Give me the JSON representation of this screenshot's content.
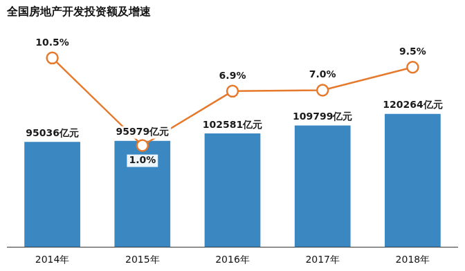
{
  "chart_data": {
    "type": "bar",
    "title": "全国房地产开发投资额及增速",
    "categories": [
      "2014年",
      "2015年",
      "2016年",
      "2017年",
      "2018年"
    ],
    "series": [
      {
        "type": "bar",
        "color": "#3a87c2",
        "values": [
          95036,
          95979,
          102581,
          109799,
          120264
        ],
        "value_labels": [
          "95036亿元",
          "95979亿元",
          "102581亿元",
          "109799亿元",
          "120264亿元"
        ]
      },
      {
        "type": "line",
        "axis": "y2",
        "color": "#e6792b",
        "marker": "circle",
        "values": [
          10.5,
          1.0,
          6.9,
          7.0,
          9.5
        ],
        "value_labels": [
          "10.5%",
          "1.0%",
          "6.9%",
          "7.0%",
          "9.5%"
        ]
      }
    ],
    "ylim": [
      0,
      200000
    ],
    "y2lim": [
      -10,
      14
    ],
    "tick_labels": "x",
    "grid": false,
    "data_labels": true
  }
}
